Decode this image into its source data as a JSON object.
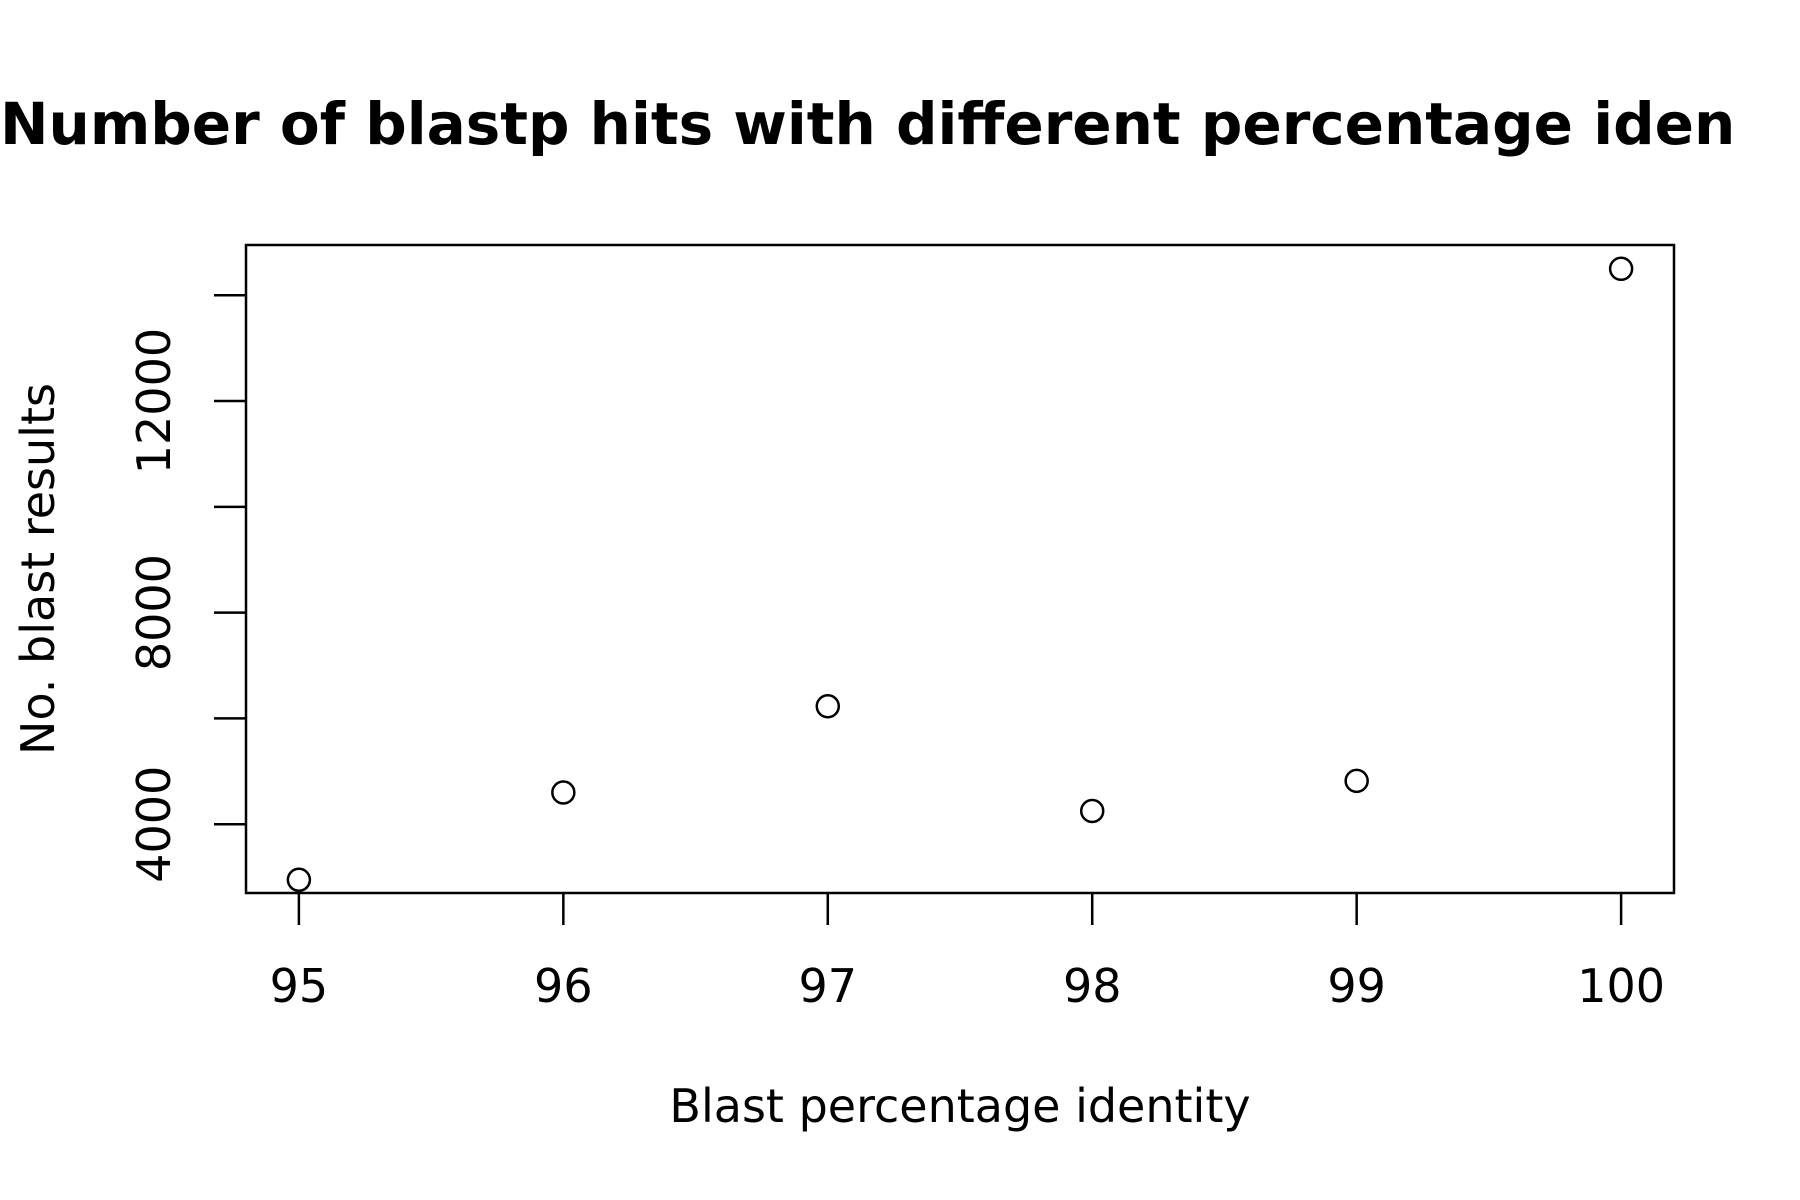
{
  "chart_data": {
    "type": "scatter",
    "title": "Number of blastp hits with different percentage iden",
    "xlabel": "Blast percentage identity",
    "ylabel": "No. blast results",
    "x": [
      95,
      96,
      97,
      98,
      99,
      100
    ],
    "y": [
      2950,
      4600,
      6230,
      4250,
      4820,
      14500
    ],
    "xlim": [
      94.8,
      100.2
    ],
    "ylim": [
      2700,
      14950
    ],
    "x_ticks": [
      95,
      96,
      97,
      98,
      99,
      100
    ],
    "y_ticks": [
      4000,
      6000,
      8000,
      10000,
      12000,
      14000
    ],
    "y_tick_labels": [
      "4000",
      "",
      "8000",
      "",
      "12000",
      ""
    ],
    "grid": false,
    "legend": "none",
    "marker": "open-circle",
    "colors": {
      "marker": "#000000",
      "axes": "#000000",
      "background": "#ffffff"
    }
  }
}
